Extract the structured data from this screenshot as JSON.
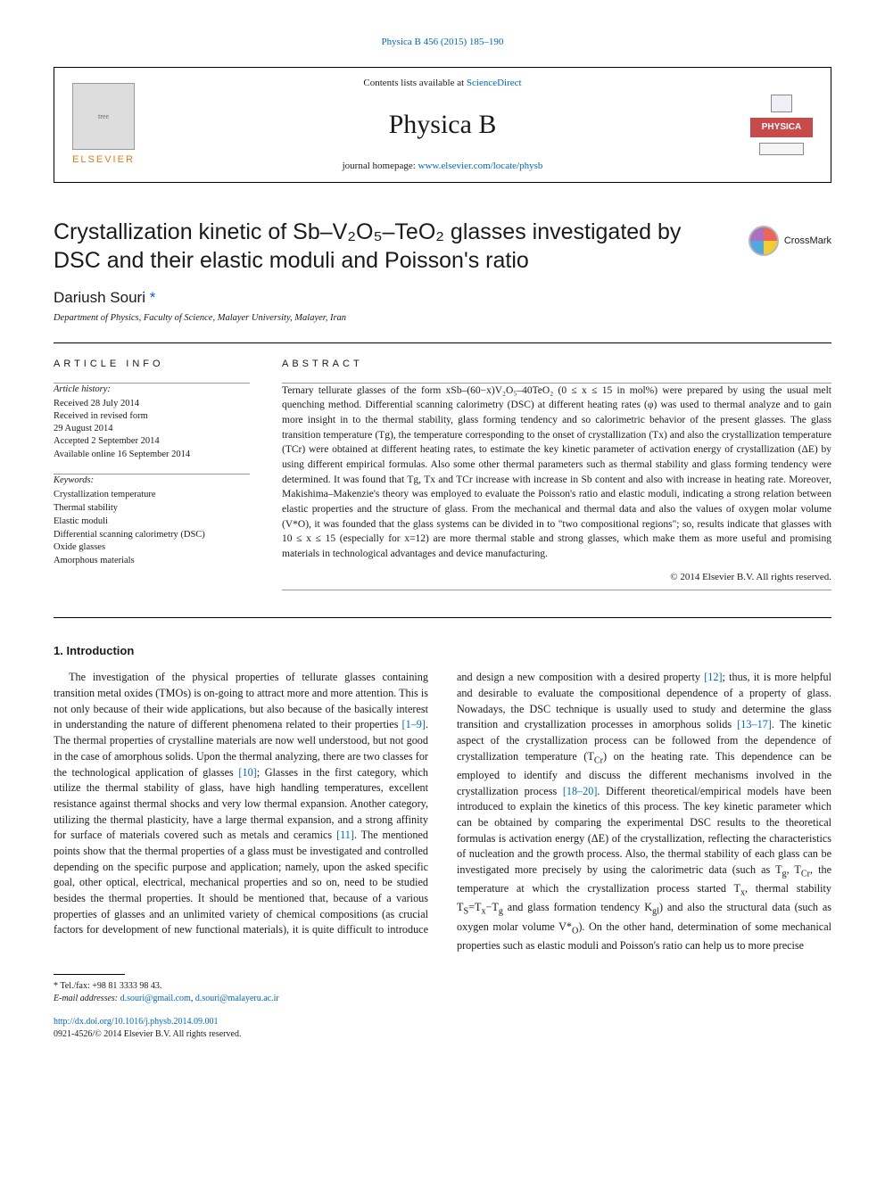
{
  "journal_ref": "Physica B 456 (2015) 185–190",
  "header": {
    "contents_prefix": "Contents lists available at ",
    "contents_link": "ScienceDirect",
    "journal_name": "Physica B",
    "homepage_prefix": "journal homepage: ",
    "homepage_url": "www.elsevier.com/locate/physb",
    "elsevier_label": "ELSEVIER",
    "physica_badge": "PHYSICA"
  },
  "title": "Crystallization kinetic of Sb–V₂O₅–TeO₂ glasses investigated by DSC and their elastic moduli and Poisson's ratio",
  "crossmark_label": "CrossMark",
  "author": "Dariush Souri",
  "author_mark": "*",
  "affiliation": "Department of Physics, Faculty of Science, Malayer University, Malayer, Iran",
  "article_info": {
    "heading": "ARTICLE INFO",
    "history_label": "Article history:",
    "history": [
      "Received 28 July 2014",
      "Received in revised form",
      "29 August 2014",
      "Accepted 2 September 2014",
      "Available online 16 September 2014"
    ],
    "keywords_label": "Keywords:",
    "keywords": [
      "Crystallization temperature",
      "Thermal stability",
      "Elastic moduli",
      "Differential scanning calorimetry (DSC)",
      "Oxide glasses",
      "Amorphous materials"
    ]
  },
  "abstract": {
    "heading": "ABSTRACT",
    "text": "Ternary tellurate glasses of the form xSb–(60−x)V₂O₅–40TeO₂ (0 ≤ x ≤ 15 in mol%) were prepared by using the usual melt quenching method. Differential scanning calorimetry (DSC) at different heating rates (φ) was used to thermal analyze and to gain more insight in to the thermal stability, glass forming tendency and so calorimetric behavior of the present glasses. The glass transition temperature (Tg), the temperature corresponding to the onset of crystallization (Tx) and also the crystallization temperature (TCr) were obtained at different heating rates, to estimate the key kinetic parameter of activation energy of crystallization (ΔE) by using different empirical formulas. Also some other thermal parameters such as thermal stability and glass forming tendency were determined. It was found that Tg, Tx and TCr increase with increase in Sb content and also with increase in heating rate. Moreover, Makishima–Makenzie's theory was employed to evaluate the Poisson's ratio and elastic moduli, indicating a strong relation between elastic properties and the structure of glass. From the mechanical and thermal data and also the values of oxygen molar volume (V*O), it was founded that the glass systems can be divided in to \"two compositional regions\"; so, results indicate that glasses with 10 ≤ x ≤ 15 (especially for x=12) are more thermal stable and strong glasses, which make them as more useful and promising materials in technological advantages and device manufacturing.",
    "copyright": "© 2014 Elsevier B.V. All rights reserved."
  },
  "section1": {
    "heading": "1.  Introduction",
    "body_html": "The investigation of the physical properties of tellurate glasses containing transition metal oxides (TMOs) is on-going to attract more and more attention. This is not only because of their wide applications, but also because of the basically interest in understanding the nature of different phenomena related to their properties <span class=\"ref-link\">[1–9]</span>. The thermal properties of crystalline materials are now well understood, but not good in the case of amorphous solids. Upon the thermal analyzing, there are two classes for the technological application of glasses <span class=\"ref-link\">[10]</span>; Glasses in the first category, which utilize the thermal stability of glass, have high handling temperatures, excellent resistance against thermal shocks and very low thermal expansion. Another category, utilizing the thermal plasticity, have a large thermal expansion, and a strong affinity for surface of materials covered such as metals and ceramics <span class=\"ref-link\">[11]</span>. The mentioned points show that the thermal properties of a glass must be investigated and controlled depending on the specific purpose and application; namely, upon the asked specific goal, other optical, electrical, mechanical properties and so on, need to be studied besides the thermal properties. It should be mentioned that, because of a various properties of glasses and an unlimited variety of chemical compositions (as crucial factors for development of new functional materials), it is quite difficult to introduce and design a new composition with a desired property <span class=\"ref-link\">[12]</span>; thus, it is more helpful and desirable to evaluate the compositional dependence of a property of glass. Nowadays, the DSC technique is usually used to study and determine the glass transition and crystallization processes in amorphous solids <span class=\"ref-link\">[13–17]</span>. The kinetic aspect of the crystallization process can be followed from the dependence of crystallization temperature (T<sub>Cr</sub>) on the heating rate. This dependence can be employed to identify and discuss the different mechanisms involved in the crystallization process <span class=\"ref-link\">[18–20]</span>. Different theoretical/empirical models have been introduced to explain the kinetics of this process. The key kinetic parameter which can be obtained by comparing the experimental DSC results to the theoretical formulas is activation energy (ΔE) of the crystallization, reflecting the characteristics of nucleation and the growth process. Also, the thermal stability of each glass can be investigated more precisely by using the calorimetric data (such as T<sub>g</sub>, T<sub>Cr</sub>, the temperature at which the crystallization process started T<sub>x</sub>, thermal stability T<sub>S</sub>=T<sub>x</sub>−T<sub>g</sub> and glass formation tendency K<sub>gl</sub>) and also the structural data (such as oxygen molar volume V*<sub>O</sub>). On the other hand, determination of some mechanical properties such as elastic moduli and Poisson's ratio can help us to more precise"
  },
  "footnotes": {
    "corr": "* Tel./fax: +98 81 3333 98 43.",
    "email_label": "E-mail addresses: ",
    "emails": [
      "d.souri@gmail.com",
      "d.souri@malayeru.ac.ir"
    ]
  },
  "doi": {
    "url": "http://dx.doi.org/10.1016/j.physb.2014.09.001",
    "issn_line": "0921-4526/© 2014 Elsevier B.V. All rights reserved."
  },
  "colors": {
    "link": "#0066cc",
    "elsevier_orange": "#e67817",
    "physica_red": "#c94a4a"
  }
}
